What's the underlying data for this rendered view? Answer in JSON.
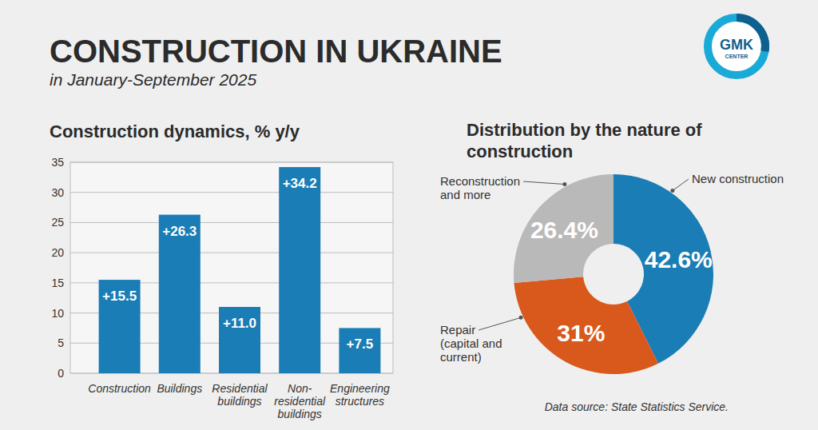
{
  "page": {
    "title": "CONSTRUCTION IN UKRAINE",
    "subtitle": "in January-September 2025",
    "logo": [
      "GMK",
      "CENTER"
    ],
    "source": "Data source: State Statistics Service."
  },
  "chart_data": [
    {
      "type": "bar",
      "title": "Construction dynamics, % y/y",
      "categories": [
        "Construction",
        "Buildings",
        "Residential buildings",
        "Non-residential buildings",
        "Engineering structures"
      ],
      "values": [
        15.5,
        26.3,
        11.0,
        34.2,
        7.5
      ],
      "value_labels": [
        "+15.5",
        "+26.3",
        "+11.0",
        "+34.2",
        "+7.5"
      ],
      "color": "#1a7db5",
      "ylim": [
        0,
        35
      ],
      "yticks": [
        0,
        5,
        10,
        15,
        20,
        25,
        30,
        35
      ],
      "grid": true,
      "data_labels": true
    },
    {
      "type": "donut",
      "title": "Distribution by the nature of construction",
      "categories": [
        "New construction",
        "Repair (capital and current)",
        "Reconstruction and more"
      ],
      "values": [
        42.6,
        31,
        26.4
      ],
      "value_labels": [
        "42.6%",
        "31%",
        "26.4%"
      ],
      "colors": [
        "#1a7db5",
        "#d9581c",
        "#b9b9b9"
      ],
      "data_labels": true
    }
  ]
}
